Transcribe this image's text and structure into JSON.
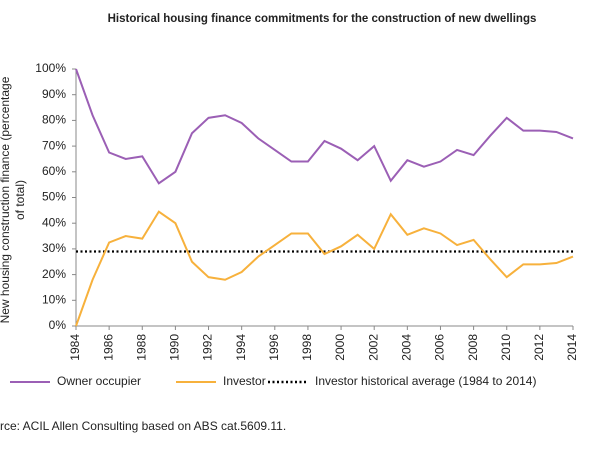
{
  "chart_data": {
    "type": "line",
    "title": "Historical housing finance commitments for the construction of new dwellings",
    "y_label": [
      "New housing construction finance (percentage",
      "of total)"
    ],
    "x": [
      1984,
      1985,
      1986,
      1987,
      1988,
      1989,
      1990,
      1991,
      1992,
      1993,
      1994,
      1995,
      1996,
      1997,
      1998,
      1999,
      2000,
      2001,
      2002,
      2003,
      2004,
      2005,
      2006,
      2007,
      2008,
      2009,
      2010,
      2011,
      2012,
      2013,
      2014
    ],
    "series": [
      {
        "name": "Owner occupier",
        "color": "#9b5fb5",
        "values": [
          100,
          82,
          67.5,
          65,
          66,
          55.5,
          60,
          75,
          81,
          82,
          79,
          73,
          68.5,
          64,
          64,
          72,
          69,
          64.5,
          70,
          56.5,
          64.5,
          62,
          64,
          68.5,
          66.5,
          74,
          81,
          76,
          76,
          75.5,
          73
        ]
      },
      {
        "name": "Investor",
        "color": "#f7b13c",
        "values": [
          0,
          18,
          32.5,
          35,
          34,
          44.5,
          40,
          25,
          19,
          18,
          21,
          27,
          31.5,
          36,
          36,
          28,
          31,
          35.5,
          30,
          43.5,
          35.5,
          38,
          36,
          31.5,
          33.5,
          26,
          19,
          24,
          24,
          24.5,
          27
        ]
      }
    ],
    "reference_lines": [
      {
        "name": "Investor historical average (1984 to 2014)",
        "value": 29,
        "color": "#000000"
      }
    ],
    "xlim": [
      1984,
      2014
    ],
    "xticks": [
      1984,
      1986,
      1988,
      1990,
      1992,
      1994,
      1996,
      1998,
      2000,
      2002,
      2004,
      2006,
      2008,
      2010,
      2012,
      2014
    ],
    "ylim": [
      0,
      100
    ],
    "yticks": [
      {
        "value": 0,
        "label": "0%"
      },
      {
        "value": 10,
        "label": "10%"
      },
      {
        "value": 20,
        "label": "20%"
      },
      {
        "value": 30,
        "label": "30%"
      },
      {
        "value": 40,
        "label": "40%"
      },
      {
        "value": 50,
        "label": "50%"
      },
      {
        "value": 60,
        "label": "60%"
      },
      {
        "value": 70,
        "label": "70%"
      },
      {
        "value": 80,
        "label": "80%"
      },
      {
        "value": 90,
        "label": "90%"
      },
      {
        "value": 100,
        "label": "100%"
      }
    ],
    "legend": "bottom",
    "source": "rce: ACIL Allen Consulting based on ABS cat.5609.11."
  }
}
